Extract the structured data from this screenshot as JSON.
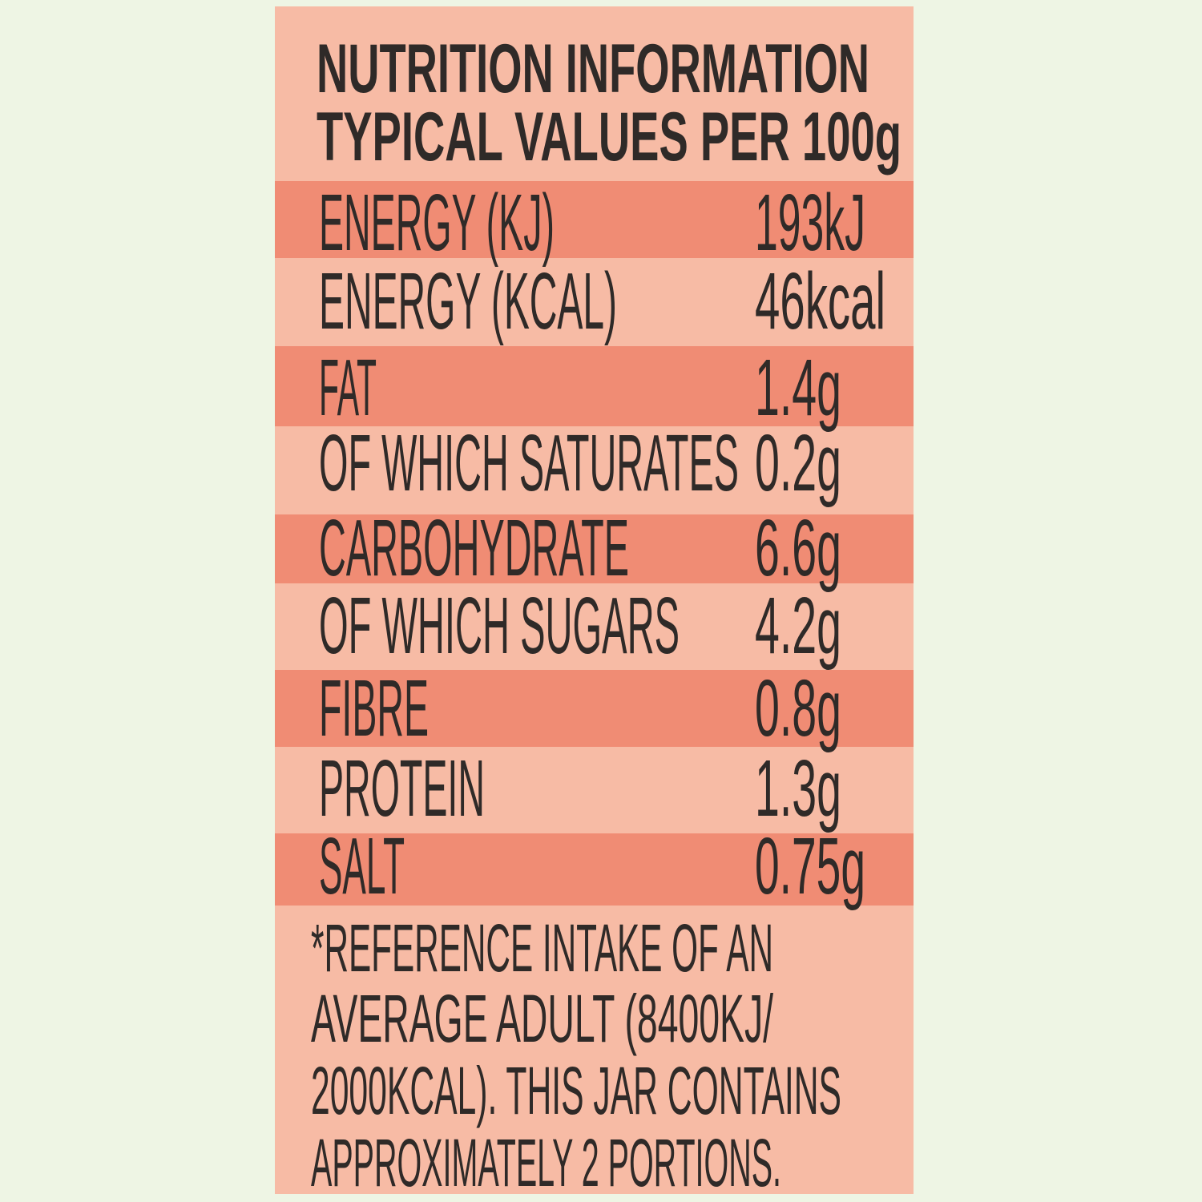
{
  "header": {
    "title": "NUTRITION INFORMATION",
    "subtitle": "TYPICAL VALUES PER 100g"
  },
  "table": {
    "rows": [
      [
        "ENERGY (KJ)",
        "193kJ"
      ],
      [
        "ENERGY (KCAL)",
        "46kcal"
      ],
      [
        "FAT",
        "1.4g"
      ],
      [
        "OF WHICH SATURATES",
        "0.2g"
      ],
      [
        "CARBOHYDRATE",
        "6.6g"
      ],
      [
        "OF WHICH SUGARS",
        "4.2g"
      ],
      [
        "FIBRE",
        "0.8g"
      ],
      [
        "PROTEIN",
        "1.3g"
      ],
      [
        "SALT",
        "0.75g"
      ]
    ]
  },
  "footnote": [
    "*REFERENCE INTAKE OF AN",
    "AVERAGE ADULT (8400KJ/",
    "2000KCAL). THIS JAR CONTAINS",
    "APPROXIMATELY 2 PORTIONS."
  ]
}
